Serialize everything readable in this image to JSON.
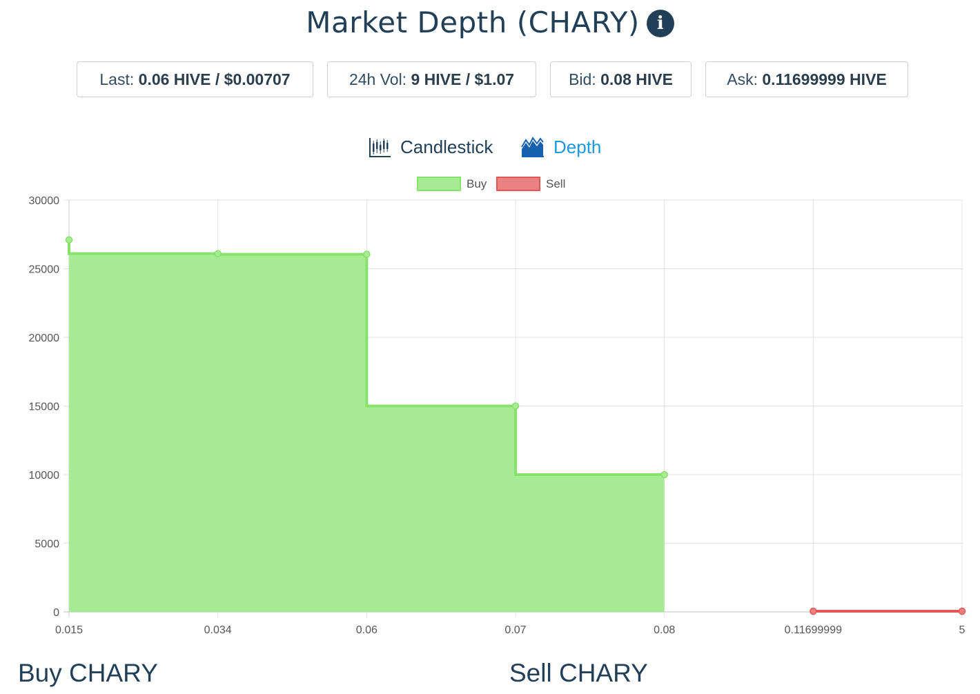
{
  "header": {
    "title": "Market Depth (CHARY)",
    "info_icon": "info-icon"
  },
  "stats": [
    {
      "label": "Last: ",
      "value": "0.06 HIVE / $0.00707"
    },
    {
      "label": "24h Vol: ",
      "value": "9 HIVE / $1.07"
    },
    {
      "label": "Bid: ",
      "value": "0.08 HIVE"
    },
    {
      "label": "Ask: ",
      "value": "0.11699999 HIVE"
    }
  ],
  "tabs": {
    "candlestick": {
      "label": "Candlestick",
      "icon": "candlestick-chart-icon",
      "active": false
    },
    "depth": {
      "label": "Depth",
      "icon": "area-chart-icon",
      "active": true
    }
  },
  "colors": {
    "title": "#223f58",
    "active_tab": "#1a9ae0",
    "buy_fill": "#a8eb95",
    "buy_line": "#86e26a",
    "sell_fill": "#eb8282",
    "sell_line": "#e25656"
  },
  "chart_data": {
    "type": "area",
    "step": true,
    "title": "",
    "xlabel": "",
    "ylabel": "",
    "ylim": [
      0,
      30000
    ],
    "yticks": [
      "0",
      "5000",
      "10000",
      "15000",
      "20000",
      "25000",
      "30000"
    ],
    "x": [
      "0.015",
      "0.034",
      "0.06",
      "0.07",
      "0.08",
      "0.11699999",
      "5"
    ],
    "legend": [
      "Buy",
      "Sell"
    ],
    "legend_position": "top-center",
    "grid": true,
    "series": [
      {
        "name": "Buy",
        "points": [
          {
            "x": "0.015",
            "y": 27100
          },
          {
            "x": "0.034",
            "y": 26100
          },
          {
            "x": "0.06",
            "y": 26050
          },
          {
            "x": "0.07",
            "y": 15000
          },
          {
            "x": "0.08",
            "y": 10000
          }
        ]
      },
      {
        "name": "Sell",
        "points": [
          {
            "x": "0.11699999",
            "y": 50
          },
          {
            "x": "5",
            "y": 50
          }
        ]
      }
    ]
  },
  "sections": {
    "buy_title": "Buy CHARY",
    "sell_title": "Sell CHARY"
  }
}
